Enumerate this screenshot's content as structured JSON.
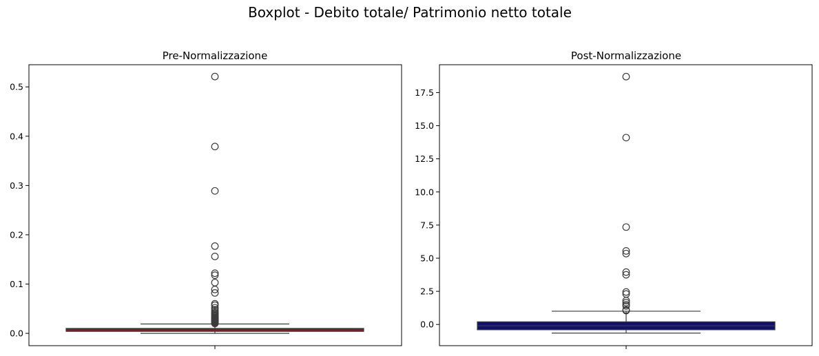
{
  "figure": {
    "suptitle": "Boxplot - Debito totale/ Patrimonio netto totale"
  },
  "chart_data": [
    {
      "type": "box",
      "title": "Pre-Normalizzazione",
      "xlabel": "",
      "ylabel": "",
      "ylim": [
        -0.025,
        0.545
      ],
      "yticks": [
        0.0,
        0.1,
        0.2,
        0.3,
        0.4,
        0.5
      ],
      "ytick_labels": [
        "0.0",
        "0.1",
        "0.2",
        "0.3",
        "0.4",
        "0.5"
      ],
      "box_color": "#8b1a1a",
      "box": {
        "whisker_low": 0.0,
        "q1": 0.004,
        "median": 0.007,
        "q3": 0.01,
        "whisker_high": 0.019
      },
      "outliers": [
        0.521,
        0.379,
        0.289,
        0.177,
        0.156,
        0.122,
        0.118,
        0.103,
        0.089,
        0.082,
        0.06,
        0.057,
        0.052,
        0.048,
        0.045,
        0.042,
        0.04,
        0.038,
        0.036,
        0.034,
        0.032,
        0.031,
        0.03,
        0.029,
        0.028,
        0.027,
        0.026,
        0.025,
        0.024,
        0.023,
        0.022,
        0.021,
        0.02
      ]
    },
    {
      "type": "box",
      "title": "Post-Normalizzazione",
      "xlabel": "",
      "ylabel": "",
      "ylim": [
        -1.6,
        19.6
      ],
      "yticks": [
        0.0,
        2.5,
        5.0,
        7.5,
        10.0,
        12.5,
        15.0,
        17.5
      ],
      "ytick_labels": [
        "0.0",
        "2.5",
        "5.0",
        "7.5",
        "10.0",
        "12.5",
        "15.0",
        "17.5"
      ],
      "box_color": "#10106e",
      "box": {
        "whisker_low": -0.65,
        "q1": -0.4,
        "median": -0.1,
        "q3": 0.2,
        "whisker_high": 1.0
      },
      "outliers": [
        18.7,
        14.1,
        7.35,
        5.55,
        5.35,
        3.95,
        3.75,
        2.45,
        2.3,
        1.8,
        1.65,
        1.5,
        1.4,
        1.1,
        1.05
      ]
    }
  ]
}
